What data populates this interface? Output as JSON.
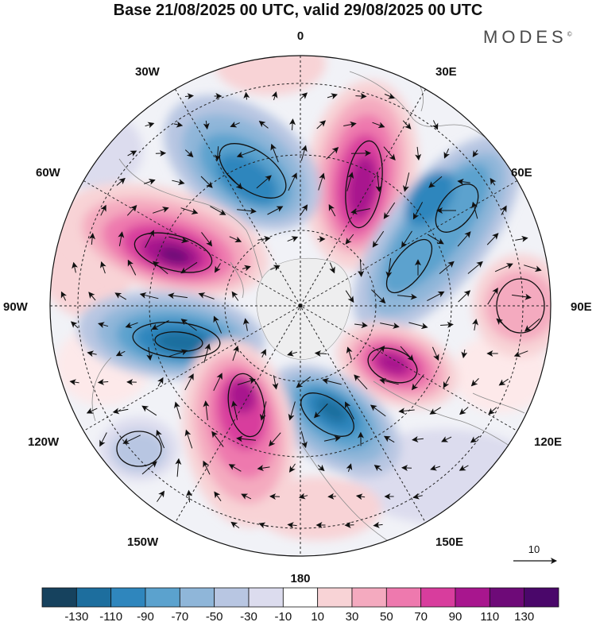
{
  "title": "Base 21/08/2025 00 UTC, valid 29/08/2025 00 UTC",
  "brand": "MODES",
  "brand_mark": "©",
  "longitude_labels": {
    "lon_0": "0",
    "lon_30e": "30E",
    "lon_60e": "60E",
    "lon_90e": "90E",
    "lon_120e": "120E",
    "lon_150e": "150E",
    "lon_180": "180",
    "lon_150w": "150W",
    "lon_120w": "120W",
    "lon_90w": "90W",
    "lon_60w": "60W",
    "lon_30w": "30W"
  },
  "vector_reference": {
    "label": "10"
  },
  "colorbar": {
    "ticks": [
      "-130",
      "-110",
      "-90",
      "-70",
      "-50",
      "-30",
      "-10",
      "10",
      "30",
      "50",
      "70",
      "90",
      "110",
      "130"
    ],
    "colors": [
      "#16425e",
      "#1d6e9e",
      "#2f86bd",
      "#5ba2ce",
      "#8fb6d9",
      "#b8c6e2",
      "#dcdcee",
      "#ffffff",
      "#f8d3d6",
      "#f4aabf",
      "#ee79ae",
      "#d83d9d",
      "#a8168e",
      "#6e0a78",
      "#4a076a"
    ]
  },
  "map": {
    "projection": "north polar stereographic",
    "anomalies": [
      {
        "name": "anomaly-positive-north",
        "sign": "positive",
        "peak": 110
      },
      {
        "name": "anomaly-negative-northwest",
        "sign": "negative",
        "peak": -90
      },
      {
        "name": "anomaly-negative-northeast",
        "sign": "negative",
        "peak": -90
      },
      {
        "name": "anomaly-positive-west",
        "sign": "positive",
        "peak": 130
      },
      {
        "name": "anomaly-negative-west",
        "sign": "negative",
        "peak": -130
      },
      {
        "name": "anomaly-positive-east",
        "sign": "positive",
        "peak": 50
      },
      {
        "name": "anomaly-positive-southeast",
        "sign": "positive",
        "peak": 130
      },
      {
        "name": "anomaly-negative-south",
        "sign": "negative",
        "peak": -130
      },
      {
        "name": "anomaly-positive-southwest",
        "sign": "positive",
        "peak": 130
      },
      {
        "name": "anomaly-negative-far-southwest",
        "sign": "negative",
        "peak": -30
      }
    ]
  }
}
